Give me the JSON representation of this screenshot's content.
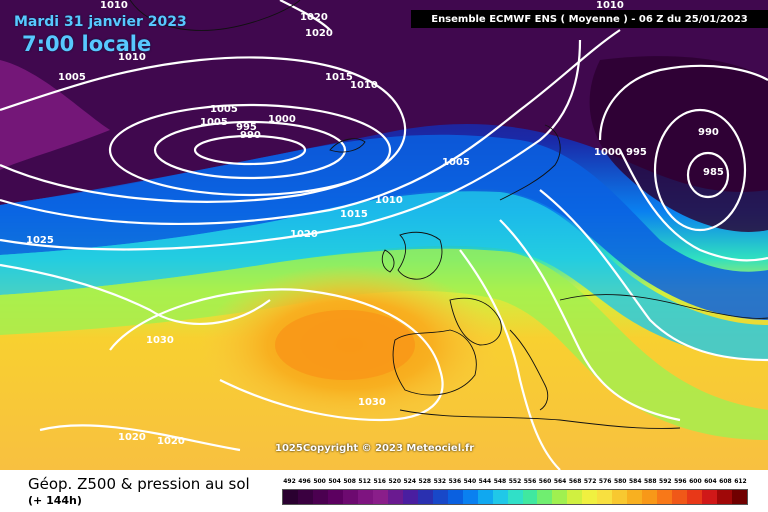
{
  "header": {
    "date": "Mardi 31 janvier 2023",
    "time": "7:00 locale",
    "model": "Ensemble ECMWF ENS  ( Moyenne )  - 06 Z du 25/01/2023"
  },
  "footer": {
    "title": "Géop. Z500 & pression au sol",
    "subtitle": "(+ 144h)",
    "copyright": "1025Copyright © 2023 Meteociel.fr"
  },
  "legend": {
    "labels": [
      "492",
      "496",
      "500",
      "504",
      "508",
      "512",
      "516",
      "520",
      "524",
      "528",
      "532",
      "536",
      "540",
      "544",
      "548",
      "552",
      "556",
      "560",
      "564",
      "568",
      "572",
      "576",
      "580",
      "584",
      "588",
      "592",
      "596",
      "600",
      "604",
      "608",
      "612"
    ],
    "colors": [
      "#2a0030",
      "#3a0040",
      "#4b0050",
      "#5c0060",
      "#6d0a70",
      "#7e1480",
      "#8a1e8a",
      "#6a1a90",
      "#4a1ea0",
      "#2a30b0",
      "#1848c8",
      "#0a60e0",
      "#0a80f0",
      "#10a8f0",
      "#20c8e8",
      "#30e0c8",
      "#40e8a0",
      "#70ee70",
      "#a0f050",
      "#d0f040",
      "#f0f040",
      "#f8e040",
      "#f8c830",
      "#f8b020",
      "#f89818",
      "#f87818",
      "#f05818",
      "#e83818",
      "#d01818",
      "#a00808",
      "#700000"
    ],
    "accent_purple": "#3c0048",
    "accent_yellow": "#f8b020",
    "isobar_color": "#ffffff"
  },
  "isobar_labels": [
    "1010",
    "1020",
    "1020",
    "1010",
    "1005",
    "1015",
    "1010",
    "1005",
    "1005",
    "995",
    "990",
    "1000",
    "1005",
    "1010",
    "1015",
    "1020",
    "1025",
    "1030",
    "1030",
    "1020",
    "1020",
    "1010",
    "1000",
    "995",
    "990",
    "985"
  ]
}
